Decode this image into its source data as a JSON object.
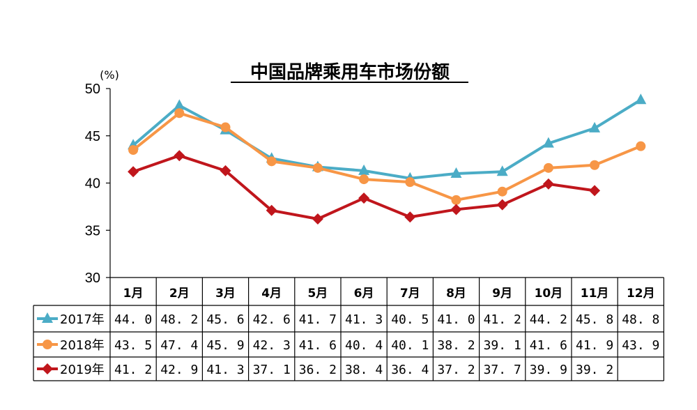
{
  "chart_data": {
    "type": "line",
    "title": "中国品牌乘用车市场份额",
    "ylabel": "(%)",
    "ylim": [
      30,
      50
    ],
    "yticks": [
      "30",
      "35",
      "40",
      "45",
      "50"
    ],
    "categories": [
      "1月",
      "2月",
      "3月",
      "4月",
      "5月",
      "6月",
      "7月",
      "8月",
      "9月",
      "10月",
      "11月",
      "12月"
    ],
    "series": [
      {
        "name": "2017年",
        "color": "#4BACC6",
        "marker": "triangle",
        "values": [
          44.0,
          48.2,
          45.6,
          42.6,
          41.7,
          41.3,
          40.5,
          41.0,
          41.2,
          44.2,
          45.8,
          48.8
        ],
        "labels": [
          "44. 0",
          "48. 2",
          "45. 6",
          "42. 6",
          "41. 7",
          "41. 3",
          "40. 5",
          "41. 0",
          "41. 2",
          "44. 2",
          "45. 8",
          "48. 8"
        ]
      },
      {
        "name": "2018年",
        "color": "#F79646",
        "marker": "circle",
        "values": [
          43.5,
          47.4,
          45.9,
          42.3,
          41.6,
          40.4,
          40.1,
          38.2,
          39.1,
          41.6,
          41.9,
          43.9
        ],
        "labels": [
          "43. 5",
          "47. 4",
          "45. 9",
          "42. 3",
          "41. 6",
          "40. 4",
          "40. 1",
          "38. 2",
          "39. 1",
          "41. 6",
          "41. 9",
          "43. 9"
        ]
      },
      {
        "name": "2019年",
        "color": "#C0161C",
        "marker": "diamond",
        "values": [
          41.2,
          42.9,
          41.3,
          37.1,
          36.2,
          38.4,
          36.4,
          37.2,
          37.7,
          39.9,
          39.2,
          null
        ],
        "labels": [
          "41. 2",
          "42. 9",
          "41. 3",
          "37. 1",
          "36. 2",
          "38. 4",
          "36. 4",
          "37. 2",
          "37. 7",
          "39. 9",
          "39. 2",
          ""
        ]
      }
    ],
    "grid": false,
    "legend": "data-table"
  }
}
